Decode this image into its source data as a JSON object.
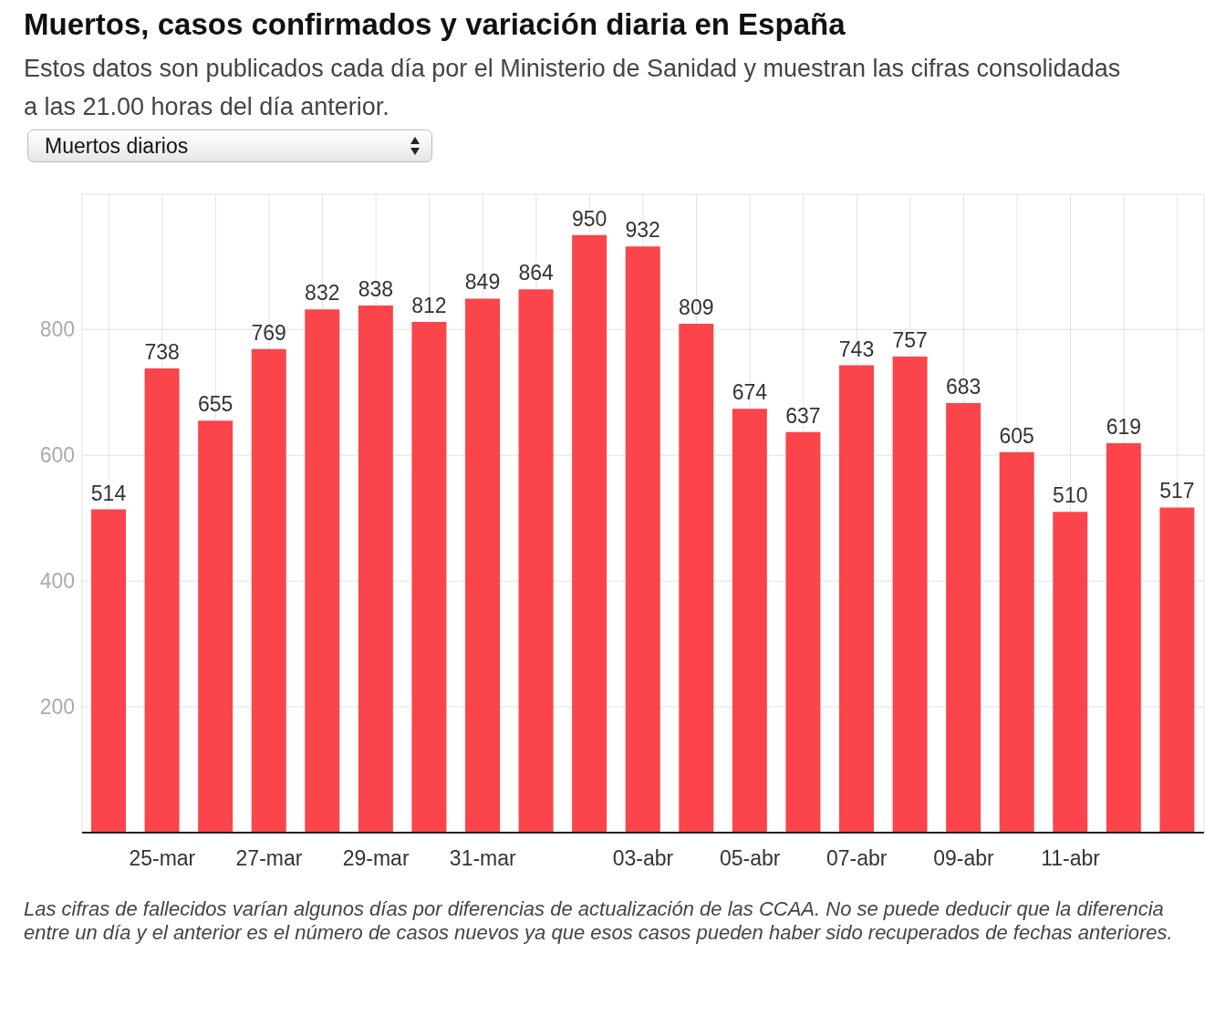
{
  "chart_data": {
    "type": "bar",
    "title": "Muertos, casos confirmados y variación diaria en España",
    "subtitle": "Estos datos son publicados cada día  por el Ministerio de Sanidad y muestran las cifras consolidadas a las 21.00 horas del día anterior.",
    "annotations": [
      "Muertos diarios",
      "Las cifras de fallecidos varían algunos días por diferencias de actualización de las CCAA. No se puede deducir que la diferencia entre un día y el anterior es el número de casos nuevos ya que esos casos pueden haber sido recuperados de fechas anteriores."
    ],
    "categories": [
      null,
      "25-mar",
      null,
      "27-mar",
      null,
      "29-mar",
      null,
      "31-mar",
      null,
      null,
      "03-abr",
      null,
      "05-abr",
      null,
      "07-abr",
      null,
      "09-abr",
      null,
      "11-abr",
      null,
      null
    ],
    "values": [
      514,
      738,
      655,
      769,
      832,
      838,
      812,
      849,
      864,
      950,
      932,
      809,
      674,
      637,
      743,
      757,
      683,
      605,
      510,
      619,
      517
    ],
    "color": "#fc444b",
    "ylim": [
      0,
      1015
    ],
    "yticks": [
      200,
      400,
      600,
      800
    ],
    "grid": true,
    "data_labels": true
  }
}
